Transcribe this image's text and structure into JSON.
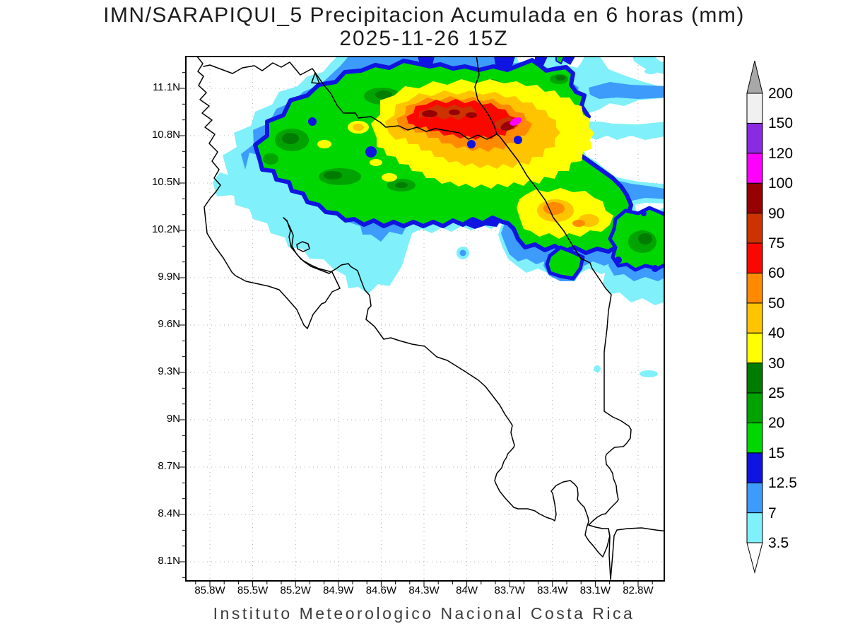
{
  "title": {
    "line1": "IMN/SARAPIQUI_5 Precipitacion Acumulada en 6 horas (mm)",
    "line2": "2025-11-26 15Z"
  },
  "footer": "Instituto Meteorologico Nacional Costa Rica",
  "axes": {
    "lat_labels": [
      "11.1N",
      "10.8N",
      "10.5N",
      "10.2N",
      "9.9N",
      "9.6N",
      "9.3N",
      "9N",
      "8.7N",
      "8.4N",
      "8.1N"
    ],
    "lon_labels": [
      "85.8W",
      "85.5W",
      "85.2W",
      "84.9W",
      "84.6W",
      "84.3W",
      "84W",
      "83.7W",
      "83.4W",
      "83.1W",
      "82.8W"
    ]
  },
  "colorbar": {
    "labels_bottom_to_top": [
      "3.5",
      "7",
      "12.5",
      "15",
      "20",
      "25",
      "30",
      "40",
      "50",
      "60",
      "75",
      "90",
      "100",
      "120",
      "150",
      "200"
    ],
    "segment_colors_bottom_to_top": [
      "#80f0fa",
      "#3d9bfc",
      "#0f14e0",
      "#00d600",
      "#00a300",
      "#007c00",
      "#ffff00",
      "#ffc400",
      "#ff8a00",
      "#fa0800",
      "#cc3300",
      "#960000",
      "#ff00ff",
      "#8a2be2",
      "#f0f0f0"
    ],
    "top_arrow_color": "#a8a8a8",
    "bottom_arrow_color": "#ffffff"
  },
  "map": {
    "background": "#ffffff",
    "grid_color": "#b0b0b0",
    "coast_color": "#000000",
    "frame_color": "#000000",
    "level_colors": {
      "c35": "#80f0fa",
      "c7": "#3d9bfc",
      "c125": "#0f14e0",
      "c15": "#00d600",
      "c20": "#00a300",
      "c25": "#007c00",
      "c30": "#ffff00",
      "c40": "#ffc400",
      "c50": "#ff8a00",
      "c60": "#fa0800",
      "c75": "#cc3300",
      "c90": "#960000",
      "c100": "#ff00ff"
    }
  }
}
